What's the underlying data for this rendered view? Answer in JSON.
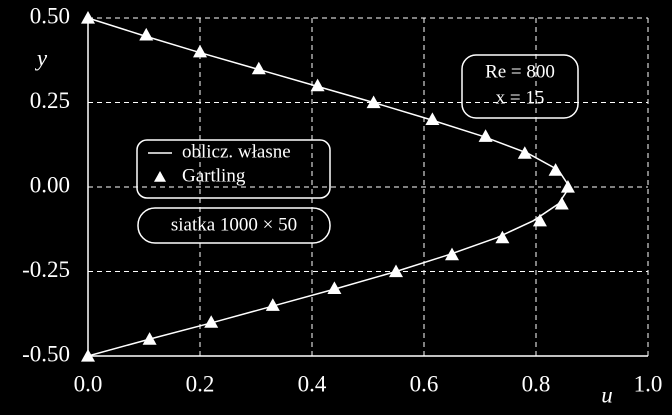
{
  "chart_data": {
    "type": "line",
    "xlabel": "u",
    "ylabel": "y",
    "xlim": [
      0,
      1
    ],
    "ylim": [
      -0.5,
      0.5
    ],
    "xticks": [
      {
        "value": 0,
        "label": "0.0"
      },
      0.2,
      0.4,
      0.6,
      0.8,
      {
        "value": 1,
        "label": "1.0"
      }
    ],
    "yticks": [
      {
        "value": 0.5,
        "label": "0.50"
      },
      0.25,
      {
        "value": 0,
        "label": "0.00"
      },
      -0.25,
      {
        "value": -0.5,
        "label": "-0.50"
      }
    ],
    "grid": true,
    "series": [
      {
        "name": "oblicz. własne",
        "type": "line",
        "color": "#ffffff",
        "x": [
          0,
          0.095,
          0.195,
          0.3,
          0.405,
          0.51,
          0.61,
          0.705,
          0.785,
          0.84,
          0.86,
          0.84,
          0.795,
          0.73,
          0.645,
          0.55,
          0.445,
          0.335,
          0.225,
          0.11,
          0
        ],
        "values": [
          0.5,
          0.45,
          0.4,
          0.35,
          0.3,
          0.25,
          0.2,
          0.15,
          0.1,
          0.05,
          0,
          -0.05,
          -0.1,
          -0.15,
          -0.2,
          -0.25,
          -0.3,
          -0.35,
          -0.4,
          -0.45,
          -0.5
        ]
      },
      {
        "name": "Gartling",
        "type": "scatter",
        "color": "#ffffff",
        "x": [
          0,
          0.104,
          0.2,
          0.305,
          0.41,
          0.51,
          0.615,
          0.71,
          0.78,
          0.835,
          0.857,
          0.846,
          0.807,
          0.74,
          0.65,
          0.55,
          0.44,
          0.33,
          0.22,
          0.11,
          0
        ],
        "values": [
          0.5,
          0.45,
          0.4,
          0.35,
          0.3,
          0.25,
          0.2,
          0.15,
          0.1,
          0.05,
          0,
          -0.05,
          -0.1,
          -0.15,
          -0.2,
          -0.25,
          -0.3,
          -0.35,
          -0.4,
          -0.45,
          -0.5
        ]
      }
    ],
    "annotations": [
      "Re = 800",
      "x = 15",
      "siatka 1000 × 50"
    ]
  }
}
